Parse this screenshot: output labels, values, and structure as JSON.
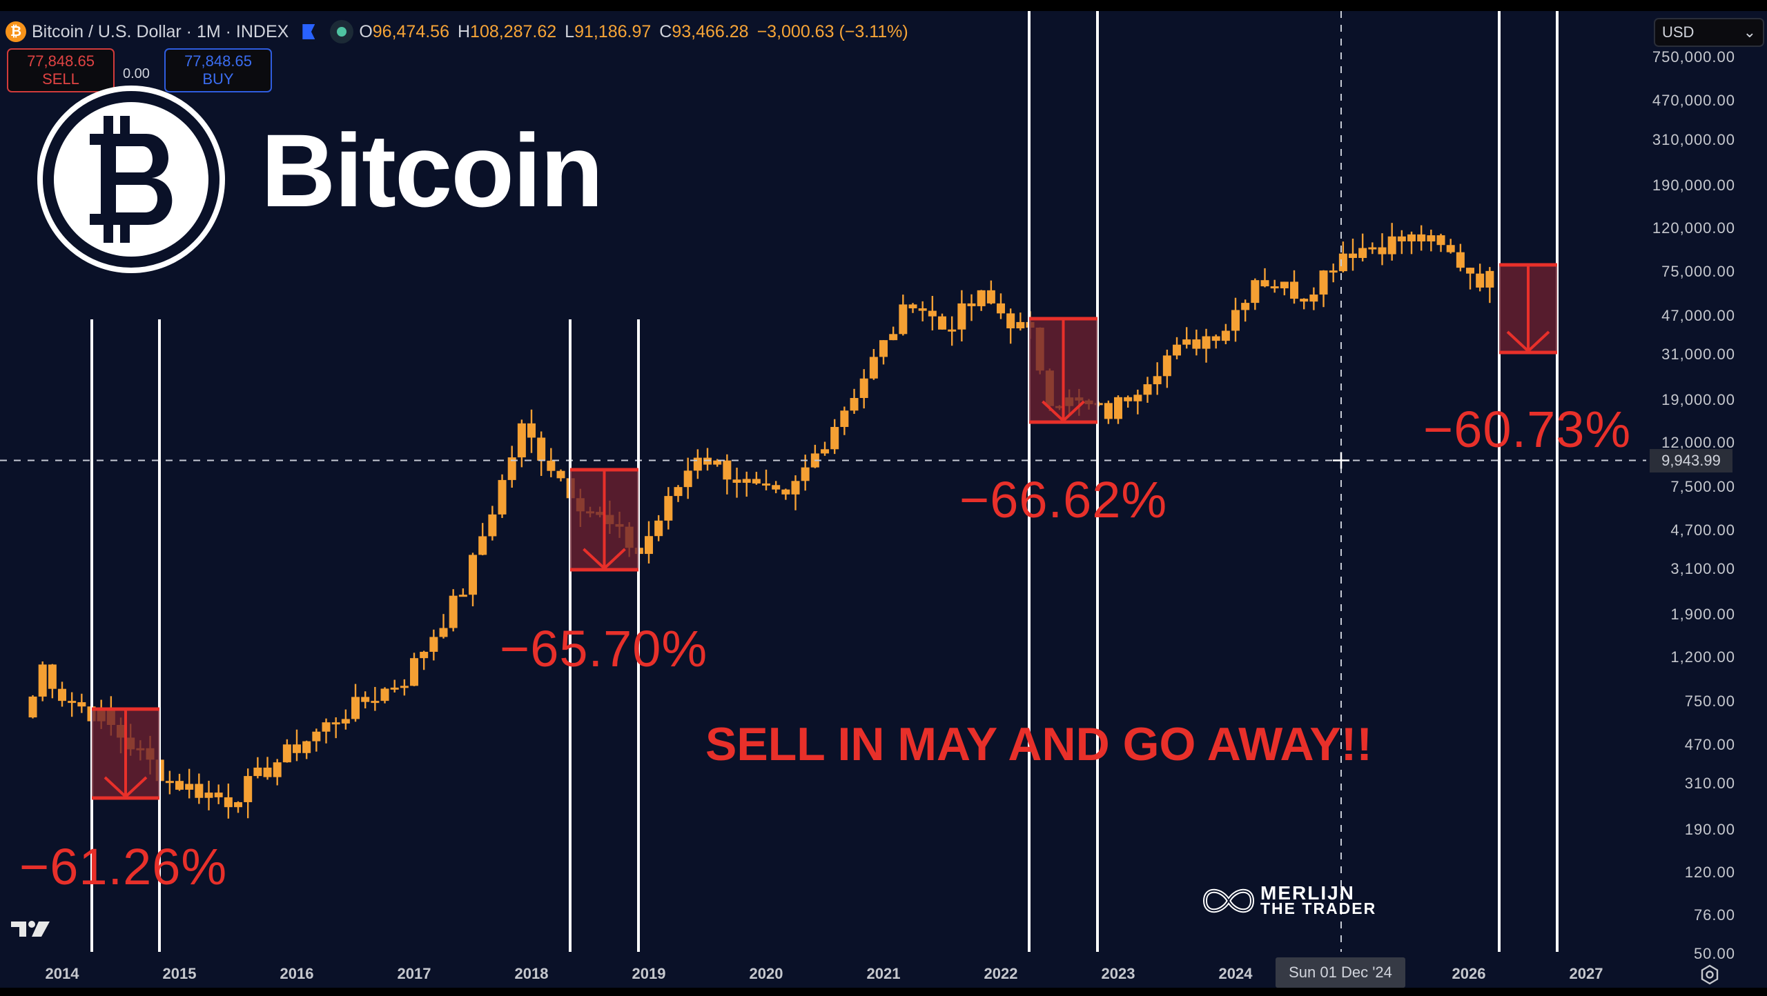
{
  "header": {
    "symbol_title": "Bitcoin / U.S. Dollar · 1M · INDEX",
    "coin_glyph": "₿",
    "ohlc": {
      "o_label": "O",
      "o_value": "96,474.56",
      "h_label": "H",
      "h_value": "108,287.62",
      "l_label": "L",
      "l_value": "91,186.97",
      "c_label": "C",
      "c_value": "93,466.28",
      "change": "−3,000.63 (−3.11%)"
    }
  },
  "trade": {
    "sell_price": "77,848.65",
    "sell_label": "SELL",
    "spread": "0.00",
    "buy_price": "77,848.65",
    "buy_label": "BUY"
  },
  "currency_select": {
    "value": "USD",
    "chevron": "⌄"
  },
  "overlay": {
    "brand_word": "Bitcoin",
    "slogan": "SELL IN MAY AND GO AWAY!!",
    "watermark_line1": "MERLIJN",
    "watermark_line2": "THE TRADER",
    "drawdowns": [
      {
        "label": "−61.26%"
      },
      {
        "label": "−65.70%"
      },
      {
        "label": "−66.62%"
      },
      {
        "label": "−60.73%"
      }
    ]
  },
  "crosshair": {
    "price": "9,943.99",
    "date": "Sun 01 Dec '24"
  },
  "y_axis": [
    "750,000.00",
    "470,000.00",
    "310,000.00",
    "190,000.00",
    "120,000.00",
    "75,000.00",
    "47,000.00",
    "31,000.00",
    "19,000.00",
    "12,000.00",
    "7,500.00",
    "4,700.00",
    "3,100.00",
    "1,900.00",
    "1,200.00",
    "750.00",
    "470.00",
    "310.00",
    "190.00",
    "120.00",
    "76.00",
    "50.00"
  ],
  "x_axis": [
    "2014",
    "2015",
    "2016",
    "2017",
    "2018",
    "2019",
    "2020",
    "2021",
    "2022",
    "2023",
    "2024",
    "2026",
    "2027"
  ],
  "colors": {
    "background": "#0a1128",
    "candle": "#f5a033",
    "annotation": "#e8302a",
    "box_fill": "#6b2030",
    "vline": "#ffffff"
  },
  "chart_data": {
    "type": "candlestick",
    "title": "Bitcoin / U.S. Dollar · 1M · INDEX",
    "xlabel": "",
    "ylabel": "USD (log scale)",
    "yscale": "log",
    "ylim": [
      50,
      750000
    ],
    "xlim": [
      "2013-10",
      "2027-06"
    ],
    "grid": false,
    "y_ticks": [
      750000,
      470000,
      310000,
      190000,
      120000,
      75000,
      47000,
      31000,
      19000,
      12000,
      7500,
      4700,
      3100,
      1900,
      1200,
      750,
      470,
      310,
      190,
      120,
      76,
      50
    ],
    "x_ticks": [
      "2014",
      "2015",
      "2016",
      "2017",
      "2018",
      "2019",
      "2020",
      "2021",
      "2022",
      "2023",
      "2024",
      "2026",
      "2027"
    ],
    "last_bar": {
      "open": 96474.56,
      "high": 108287.62,
      "low": 91186.97,
      "close": 93466.28,
      "change": -3000.63,
      "change_pct": -3.11
    },
    "approx_monthly_close": {
      "2013-11": 1100,
      "2014-01": 800,
      "2014-05": 630,
      "2014-12": 320,
      "2015-06": 260,
      "2015-12": 430,
      "2016-06": 670,
      "2016-12": 960,
      "2017-06": 2500,
      "2017-12": 14000,
      "2018-06": 6400,
      "2018-12": 3700,
      "2019-06": 10800,
      "2019-12": 7200,
      "2020-03": 6400,
      "2020-12": 29000,
      "2021-04": 57000,
      "2021-07": 41000,
      "2021-11": 57000,
      "2022-04": 38000,
      "2022-06": 19900,
      "2022-12": 16500,
      "2023-06": 30400,
      "2023-12": 42000,
      "2024-03": 71000,
      "2024-08": 59000,
      "2024-12": 93400,
      "2025-05": 104000,
      "2025-08": 108000,
      "2025-11": 90000,
      "2026-02": 70000
    },
    "annotations": [
      {
        "type": "drawdown_box",
        "start": "2014-05",
        "end": "2014-11",
        "label": "−61.26%",
        "top": 640,
        "bottom": 250
      },
      {
        "type": "drawdown_box",
        "start": "2018-05",
        "end": "2018-11",
        "label": "−65.70%",
        "top": 9800,
        "bottom": 3360
      },
      {
        "type": "drawdown_box",
        "start": "2022-05",
        "end": "2022-11",
        "label": "−66.62%",
        "top": 47000,
        "bottom": 15700
      },
      {
        "type": "drawdown_box",
        "start": "2026-05",
        "end": "2026-11",
        "label": "−60.73%",
        "top": 79000,
        "bottom": 31000
      },
      {
        "type": "text",
        "label": "SELL IN MAY AND GO AWAY!!"
      }
    ],
    "vertical_lines": [
      "2014-05",
      "2014-11",
      "2018-05",
      "2018-11",
      "2022-05",
      "2022-11",
      "2026-05",
      "2026-11"
    ],
    "crosshair": {
      "x": "2024-12-01",
      "y": 9943.99
    }
  }
}
